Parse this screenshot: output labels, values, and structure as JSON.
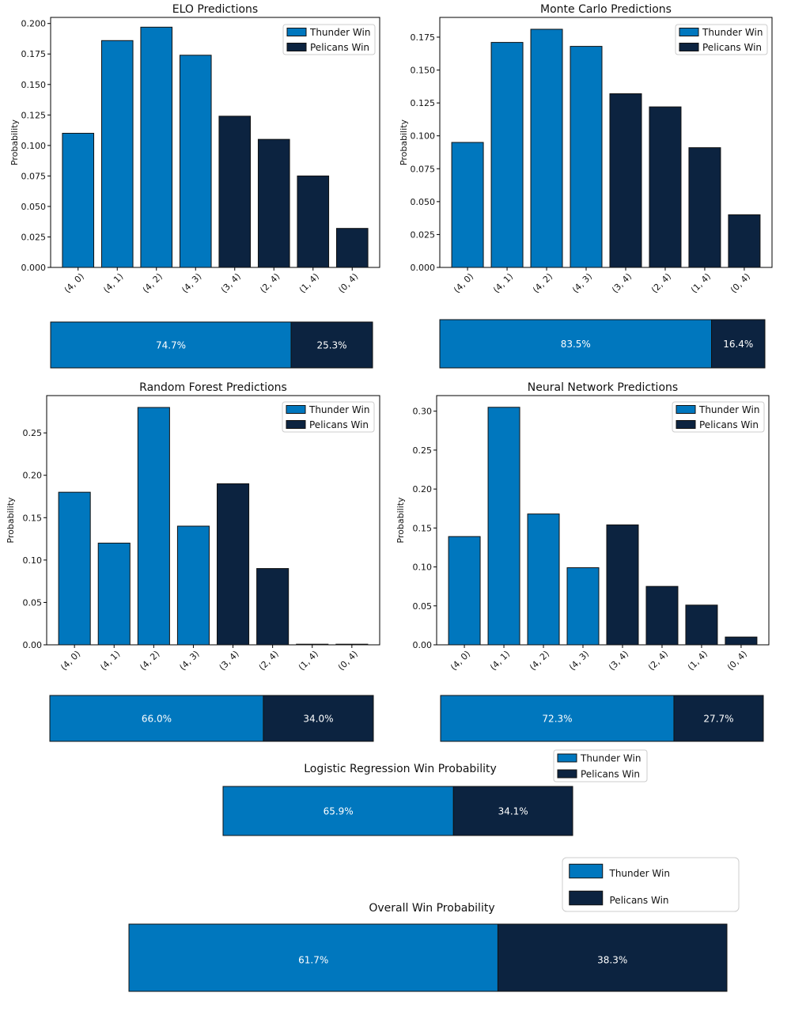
{
  "colors": {
    "thunder": "#0077be",
    "pelicans": "#0c2340",
    "edge": "#111111"
  },
  "legend": [
    "Thunder Win",
    "Pelicans Win"
  ],
  "chart_data": [
    {
      "type": "bar",
      "title": "ELO Predictions",
      "ylabel": "Probability",
      "categories": [
        "(4, 0)",
        "(4, 1)",
        "(4, 2)",
        "(4, 3)",
        "(3, 4)",
        "(2, 4)",
        "(1, 4)",
        "(0, 4)"
      ],
      "values": [
        0.11,
        0.186,
        0.197,
        0.174,
        0.124,
        0.105,
        0.075,
        0.032
      ],
      "winner": [
        "thunder",
        "thunder",
        "thunder",
        "thunder",
        "pelicans",
        "pelicans",
        "pelicans",
        "pelicans"
      ],
      "ylim": [
        0,
        0.205
      ],
      "yticks": [
        0,
        0.025,
        0.05,
        0.075,
        0.1,
        0.125,
        0.15,
        0.175,
        0.2
      ],
      "ytick_labels": [
        "0.000",
        "0.025",
        "0.050",
        "0.075",
        "0.100",
        "0.125",
        "0.150",
        "0.175",
        "0.200"
      ],
      "legend_position": "top-right"
    },
    {
      "type": "bar",
      "title": "Monte Carlo Predictions",
      "ylabel": "Probability",
      "categories": [
        "(4, 0)",
        "(4, 1)",
        "(4, 2)",
        "(4, 3)",
        "(3, 4)",
        "(2, 4)",
        "(1, 4)",
        "(0, 4)"
      ],
      "values": [
        0.095,
        0.171,
        0.181,
        0.168,
        0.132,
        0.122,
        0.091,
        0.04
      ],
      "winner": [
        "thunder",
        "thunder",
        "thunder",
        "thunder",
        "pelicans",
        "pelicans",
        "pelicans",
        "pelicans"
      ],
      "ylim": [
        0,
        0.19
      ],
      "yticks": [
        0,
        0.025,
        0.05,
        0.075,
        0.1,
        0.125,
        0.15,
        0.175
      ],
      "ytick_labels": [
        "0.000",
        "0.025",
        "0.050",
        "0.075",
        "0.100",
        "0.125",
        "0.150",
        "0.175"
      ],
      "legend_position": "top-right"
    },
    {
      "type": "bar",
      "title": "Random Forest Predictions",
      "ylabel": "Probability",
      "categories": [
        "(4, 0)",
        "(4, 1)",
        "(4, 2)",
        "(4, 3)",
        "(3, 4)",
        "(2, 4)",
        "(1, 4)",
        "(0, 4)"
      ],
      "values": [
        0.18,
        0.12,
        0.28,
        0.14,
        0.19,
        0.09,
        0.0,
        0.0
      ],
      "winner": [
        "thunder",
        "thunder",
        "thunder",
        "thunder",
        "pelicans",
        "pelicans",
        "pelicans",
        "pelicans"
      ],
      "ylim": [
        0,
        0.294
      ],
      "yticks": [
        0,
        0.05,
        0.1,
        0.15,
        0.2,
        0.25
      ],
      "ytick_labels": [
        "0.00",
        "0.05",
        "0.10",
        "0.15",
        "0.20",
        "0.25"
      ],
      "legend_position": "top-right"
    },
    {
      "type": "bar",
      "title": "Neural Network Predictions",
      "ylabel": "Probability",
      "categories": [
        "(4, 0)",
        "(4, 1)",
        "(4, 2)",
        "(4, 3)",
        "(3, 4)",
        "(2, 4)",
        "(1, 4)",
        "(0, 4)"
      ],
      "values": [
        0.139,
        0.305,
        0.168,
        0.099,
        0.154,
        0.075,
        0.051,
        0.01
      ],
      "winner": [
        "thunder",
        "thunder",
        "thunder",
        "thunder",
        "pelicans",
        "pelicans",
        "pelicans",
        "pelicans"
      ],
      "ylim": [
        0,
        0.32
      ],
      "yticks": [
        0,
        0.05,
        0.1,
        0.15,
        0.2,
        0.25,
        0.3
      ],
      "ytick_labels": [
        "0.00",
        "0.05",
        "0.10",
        "0.15",
        "0.20",
        "0.25",
        "0.30"
      ],
      "legend_position": "top-right"
    },
    {
      "type": "bar",
      "orientation": "horizontal-stacked",
      "title": "",
      "segments": [
        {
          "name": "Thunder Win",
          "value": 74.7,
          "label": "74.7%"
        },
        {
          "name": "Pelicans Win",
          "value": 25.3,
          "label": "25.3%"
        }
      ]
    },
    {
      "type": "bar",
      "orientation": "horizontal-stacked",
      "title": "",
      "segments": [
        {
          "name": "Thunder Win",
          "value": 83.5,
          "label": "83.5%"
        },
        {
          "name": "Pelicans Win",
          "value": 16.4,
          "label": "16.4%"
        }
      ]
    },
    {
      "type": "bar",
      "orientation": "horizontal-stacked",
      "title": "",
      "segments": [
        {
          "name": "Thunder Win",
          "value": 66.0,
          "label": "66.0%"
        },
        {
          "name": "Pelicans Win",
          "value": 34.0,
          "label": "34.0%"
        }
      ]
    },
    {
      "type": "bar",
      "orientation": "horizontal-stacked",
      "title": "",
      "segments": [
        {
          "name": "Thunder Win",
          "value": 72.3,
          "label": "72.3%"
        },
        {
          "name": "Pelicans Win",
          "value": 27.7,
          "label": "27.7%"
        }
      ]
    },
    {
      "type": "bar",
      "orientation": "horizontal-stacked",
      "title": "Logistic Regression Win Probability",
      "segments": [
        {
          "name": "Thunder Win",
          "value": 65.9,
          "label": "65.9%"
        },
        {
          "name": "Pelicans Win",
          "value": 34.1,
          "label": "34.1%"
        }
      ],
      "legend_position": "top-right"
    },
    {
      "type": "bar",
      "orientation": "horizontal-stacked",
      "title": "Overall Win Probability",
      "segments": [
        {
          "name": "Thunder Win",
          "value": 61.7,
          "label": "61.7%"
        },
        {
          "name": "Pelicans Win",
          "value": 38.3,
          "label": "38.3%"
        }
      ],
      "legend_position": "top-right"
    }
  ]
}
